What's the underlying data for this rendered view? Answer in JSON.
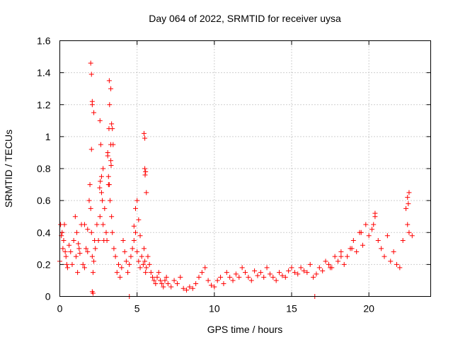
{
  "chart_data": {
    "type": "scatter",
    "title": "Day 064 of 2022, SRMTID for receiver uysa",
    "xlabel": "GPS time / hours",
    "ylabel": "SRMTID / TECUs",
    "xlim": [
      0,
      24
    ],
    "ylim": [
      0,
      1.6
    ],
    "xticks": [
      0,
      5,
      10,
      15,
      20
    ],
    "xtick_labels": [
      "0",
      "5",
      "10",
      "15",
      "20"
    ],
    "yticks": [
      0,
      0.2,
      0.4,
      0.6,
      0.8,
      1.0,
      1.2,
      1.4,
      1.6
    ],
    "ytick_labels": [
      "0",
      "0.2",
      "0.4",
      "0.6",
      "0.8",
      "1",
      "1.2",
      "1.4",
      "1.6"
    ],
    "grid": true,
    "marker": "+",
    "color": "#ff0000",
    "series": [
      {
        "name": "SRMTID",
        "x": [
          0.0,
          0.1,
          0.2,
          0.3,
          0.4,
          0.5,
          0.6,
          0.7,
          0.8,
          0.9,
          1.0,
          1.1,
          1.2,
          1.3,
          1.4,
          1.5,
          1.6,
          1.7,
          1.8,
          1.9,
          1.95,
          2.0,
          2.05,
          2.1,
          2.15,
          2.2,
          2.3,
          2.4,
          2.5,
          2.6,
          2.7,
          2.8,
          2.9,
          3.0,
          3.05,
          3.1,
          3.15,
          3.2,
          3.25,
          3.3,
          3.35,
          3.4,
          3.5,
          3.6,
          3.7,
          3.8,
          3.9,
          4.0,
          4.1,
          4.2,
          4.3,
          4.4,
          4.5,
          4.6,
          4.7,
          4.8,
          4.9,
          5.0,
          5.1,
          5.2,
          5.3,
          5.4,
          5.45,
          5.5,
          5.55,
          5.6,
          5.7,
          5.8,
          5.9,
          6.0,
          6.1,
          6.2,
          6.3,
          6.4,
          6.5,
          6.6,
          6.7,
          6.8,
          6.9,
          7.0,
          7.2,
          7.4,
          7.6,
          7.8,
          8.0,
          8.2,
          8.4,
          8.6,
          8.8,
          9.0,
          9.2,
          9.4,
          9.6,
          9.8,
          10.0,
          10.2,
          10.4,
          10.6,
          10.8,
          11.0,
          11.2,
          11.4,
          11.6,
          11.8,
          12.0,
          12.2,
          12.4,
          12.6,
          12.8,
          13.0,
          13.2,
          13.4,
          13.6,
          13.8,
          14.0,
          14.2,
          14.4,
          14.6,
          14.8,
          15.0,
          15.2,
          15.4,
          15.6,
          15.8,
          16.0,
          16.2,
          16.4,
          16.6,
          16.8,
          17.0,
          17.2,
          17.4,
          17.6,
          17.8,
          18.0,
          18.2,
          18.4,
          18.6,
          18.8,
          19.0,
          19.2,
          19.4,
          19.6,
          19.8,
          20.0,
          20.2,
          20.4,
          20.6,
          20.8,
          21.0,
          21.2,
          21.4,
          21.6,
          21.8,
          22.0,
          22.2,
          22.4,
          22.5,
          22.6,
          22.8,
          0.05,
          0.15,
          0.25,
          0.35,
          0.45,
          1.05,
          1.15,
          1.25,
          1.6,
          1.8,
          2.0,
          2.05,
          2.1,
          2.2,
          2.25,
          2.6,
          2.65,
          2.7,
          2.75,
          2.8,
          2.85,
          3.1,
          3.15,
          3.2,
          3.3,
          3.35,
          3.4,
          3.45,
          5.45,
          5.5,
          5.55,
          5.6,
          4.9,
          5.0,
          5.1,
          5.2,
          2.1,
          2.15,
          22.5,
          22.55,
          22.6,
          20.4,
          20.3,
          19.5,
          18.9,
          18.2,
          17.5,
          4.5,
          16.5,
          2.05,
          2.1,
          5.5,
          5.52,
          3.22,
          3.18,
          2.62,
          2.58,
          3.3,
          3.32,
          4.8
        ],
        "y": [
          0.22,
          0.38,
          0.3,
          0.45,
          0.25,
          0.18,
          0.32,
          0.28,
          0.2,
          0.35,
          0.5,
          0.4,
          0.33,
          0.27,
          0.45,
          0.2,
          0.18,
          0.3,
          0.42,
          0.6,
          0.7,
          0.55,
          0.4,
          0.25,
          0.15,
          0.22,
          0.3,
          0.45,
          0.35,
          0.5,
          0.65,
          0.8,
          0.55,
          0.4,
          0.35,
          0.9,
          0.75,
          0.7,
          0.6,
          0.85,
          0.5,
          0.4,
          0.3,
          0.25,
          0.15,
          0.2,
          0.12,
          0.18,
          0.35,
          0.28,
          0.22,
          0.15,
          0.2,
          0.25,
          0.3,
          0.35,
          0.4,
          0.28,
          0.22,
          0.18,
          0.25,
          0.2,
          0.3,
          0.22,
          0.15,
          0.18,
          0.25,
          0.2,
          0.15,
          0.12,
          0.1,
          0.08,
          0.12,
          0.15,
          0.1,
          0.08,
          0.06,
          0.1,
          0.12,
          0.08,
          0.06,
          0.1,
          0.08,
          0.12,
          0.05,
          0.04,
          0.06,
          0.05,
          0.08,
          0.12,
          0.15,
          0.18,
          0.1,
          0.07,
          0.06,
          0.1,
          0.12,
          0.08,
          0.15,
          0.12,
          0.1,
          0.14,
          0.12,
          0.18,
          0.15,
          0.12,
          0.1,
          0.16,
          0.13,
          0.15,
          0.12,
          0.18,
          0.14,
          0.12,
          0.1,
          0.15,
          0.13,
          0.12,
          0.16,
          0.18,
          0.15,
          0.14,
          0.18,
          0.16,
          0.15,
          0.2,
          0.12,
          0.14,
          0.18,
          0.16,
          0.22,
          0.2,
          0.18,
          0.25,
          0.22,
          0.28,
          0.2,
          0.25,
          0.3,
          0.35,
          0.28,
          0.4,
          0.32,
          0.45,
          0.38,
          0.42,
          0.5,
          0.35,
          0.3,
          0.25,
          0.38,
          0.22,
          0.28,
          0.2,
          0.18,
          0.35,
          0.55,
          0.45,
          0.4,
          0.38,
          0.45,
          0.4,
          0.35,
          0.28,
          0.2,
          0.25,
          0.15,
          0.3,
          0.45,
          0.28,
          1.46,
          1.39,
          1.2,
          1.15,
          0.35,
          1.1,
          0.95,
          0.75,
          0.6,
          0.45,
          0.35,
          0.88,
          0.7,
          1.35,
          1.3,
          1.08,
          1.05,
          0.95,
          1.02,
          0.99,
          0.78,
          0.65,
          0.55,
          0.6,
          0.48,
          0.38,
          0.03,
          0.02,
          0.62,
          0.58,
          0.65,
          0.52,
          0.45,
          0.4,
          0.3,
          0.25,
          0.18,
          0.0,
          0.0,
          0.92,
          1.22,
          0.8,
          0.76,
          1.2,
          1.05,
          0.72,
          0.68,
          0.95,
          0.82,
          0.44
        ]
      }
    ]
  }
}
